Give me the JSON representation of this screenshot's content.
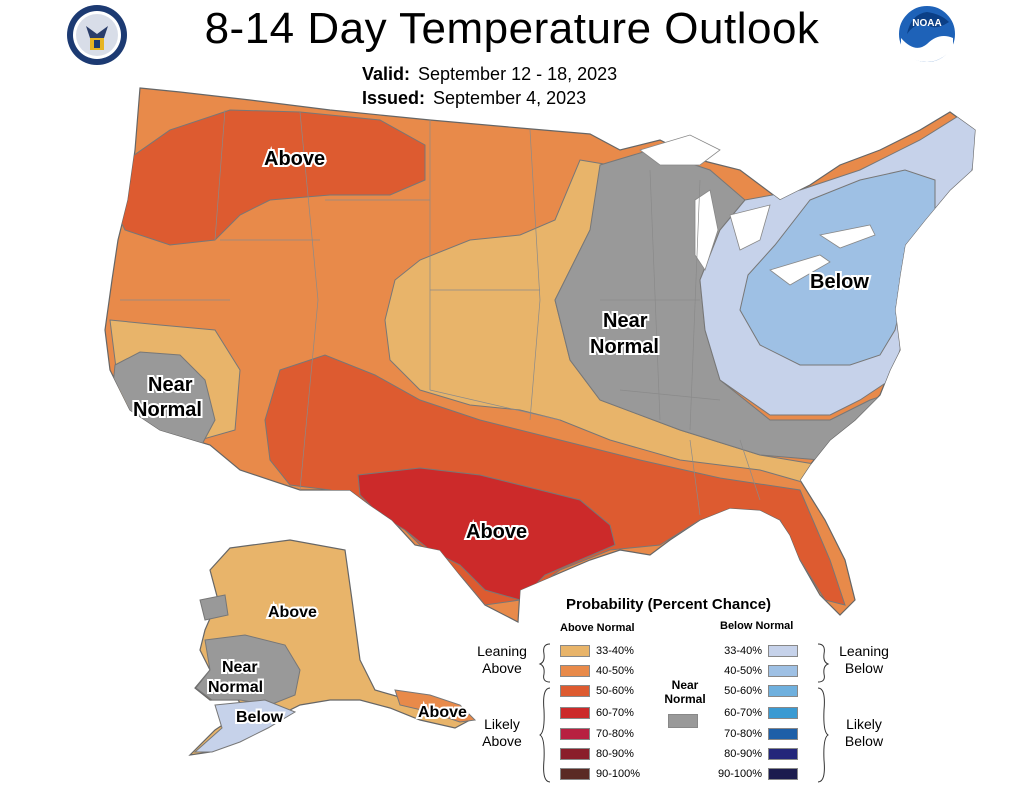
{
  "header": {
    "title": "8-14 Day Temperature Outlook",
    "valid_label": "Valid:",
    "valid_value": "September 12 - 18, 2023",
    "issued_label": "Issued:",
    "issued_value": "September 4, 2023"
  },
  "logos": {
    "left": "doc-seal-icon",
    "right": "noaa-logo-icon"
  },
  "colors": {
    "above_33_40": "#e8b46a",
    "above_40_50": "#e88a4a",
    "above_50_60": "#dd5b30",
    "above_60_70": "#cc2a2a",
    "above_70_80": "#b82040",
    "above_80_90": "#8a1e2a",
    "above_90_100": "#5a2a24",
    "near_normal": "#999999",
    "below_33_40": "#c6d2ea",
    "below_40_50": "#9ec0e4",
    "below_50_60": "#6fb0de",
    "below_60_70": "#3a9ad2",
    "below_70_80": "#1d5fa8",
    "below_80_90": "#23267a",
    "below_90_100": "#1c1c4e"
  },
  "map_labels": {
    "nw_above": "Above",
    "tx_above": "Above",
    "ca_near": "Near",
    "ca_normal": "Normal",
    "mw_near": "Near",
    "mw_normal": "Normal",
    "ne_below": "Below",
    "ak_above": "Above",
    "ak_near": "Near",
    "ak_normal": "Normal",
    "ak_below": "Below",
    "ak_se_above": "Above"
  },
  "legend": {
    "title": "Probability (Percent Chance)",
    "above_header": "Above Normal",
    "below_header": "Below Normal",
    "near_normal_label": "Near Normal",
    "leaning_above": "Leaning Above",
    "likely_above": "Likely Above",
    "leaning_below": "Leaning Below",
    "likely_below": "Likely Below",
    "above_rows": [
      "33-40%",
      "40-50%",
      "50-60%",
      "60-70%",
      "70-80%",
      "80-90%",
      "90-100%"
    ],
    "below_rows": [
      "33-40%",
      "40-50%",
      "50-60%",
      "60-70%",
      "70-80%",
      "80-90%",
      "90-100%"
    ]
  }
}
